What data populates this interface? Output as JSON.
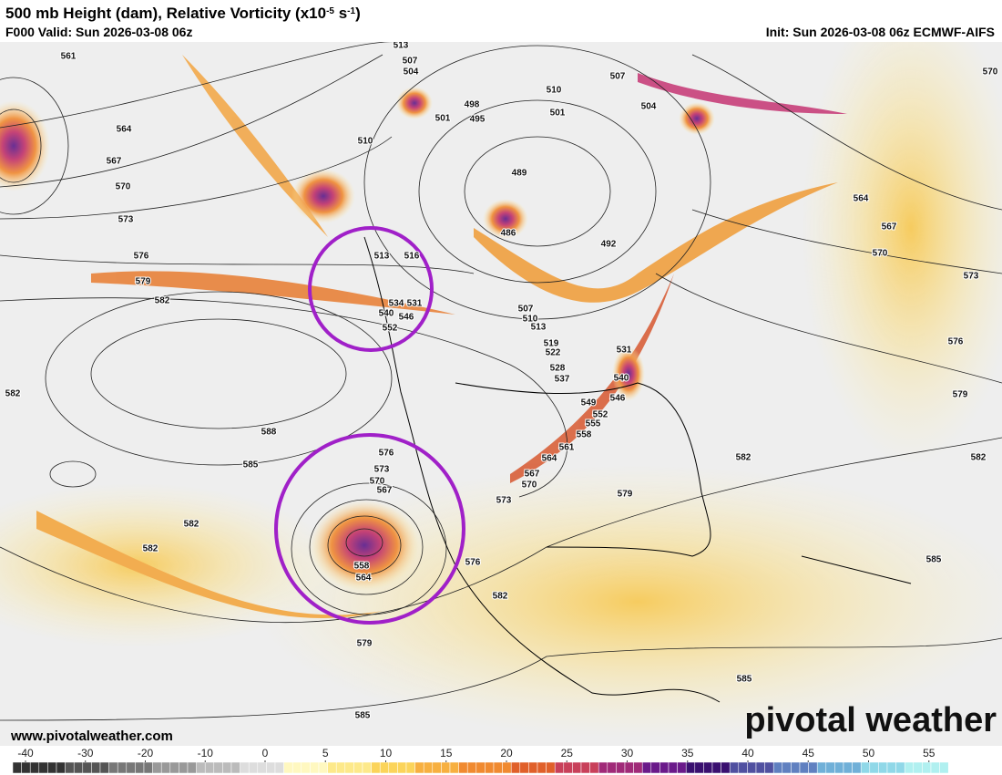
{
  "header": {
    "title": [
      "500 mb Height (dam), Relative Vorticity (x10",
      "-5",
      " s",
      "-1",
      ")"
    ],
    "valid": "F000 Valid: Sun 2026-03-08 06z",
    "init": "Init: Sun 2026-03-08 06z ECMWF-AIFS"
  },
  "contour_labels": [
    561,
    564,
    567,
    570,
    573,
    576,
    579,
    582,
    582,
    588,
    585,
    582,
    582,
    579,
    585,
    513,
    507,
    504,
    501,
    498,
    495,
    510,
    489,
    486,
    492,
    510,
    501,
    507,
    504,
    570,
    564,
    567,
    570,
    573,
    576,
    579,
    582,
    582,
    585,
    585,
    579,
    573,
    570,
    567,
    564,
    561,
    558,
    555,
    552,
    549,
    537,
    576,
    573,
    570,
    567,
    564,
    558,
    576,
    582,
    507,
    510,
    513,
    519,
    522,
    528,
    531,
    540,
    546,
    513,
    534,
    531,
    540,
    546,
    552,
    516
  ],
  "colorbar": {
    "ticks": [
      -40,
      -30,
      -20,
      -10,
      0,
      5,
      10,
      15,
      20,
      25,
      30,
      35,
      40,
      45,
      50,
      55
    ]
  },
  "footer": {
    "url": "www.pivotalweather.com",
    "logo": "pivotal weather"
  }
}
